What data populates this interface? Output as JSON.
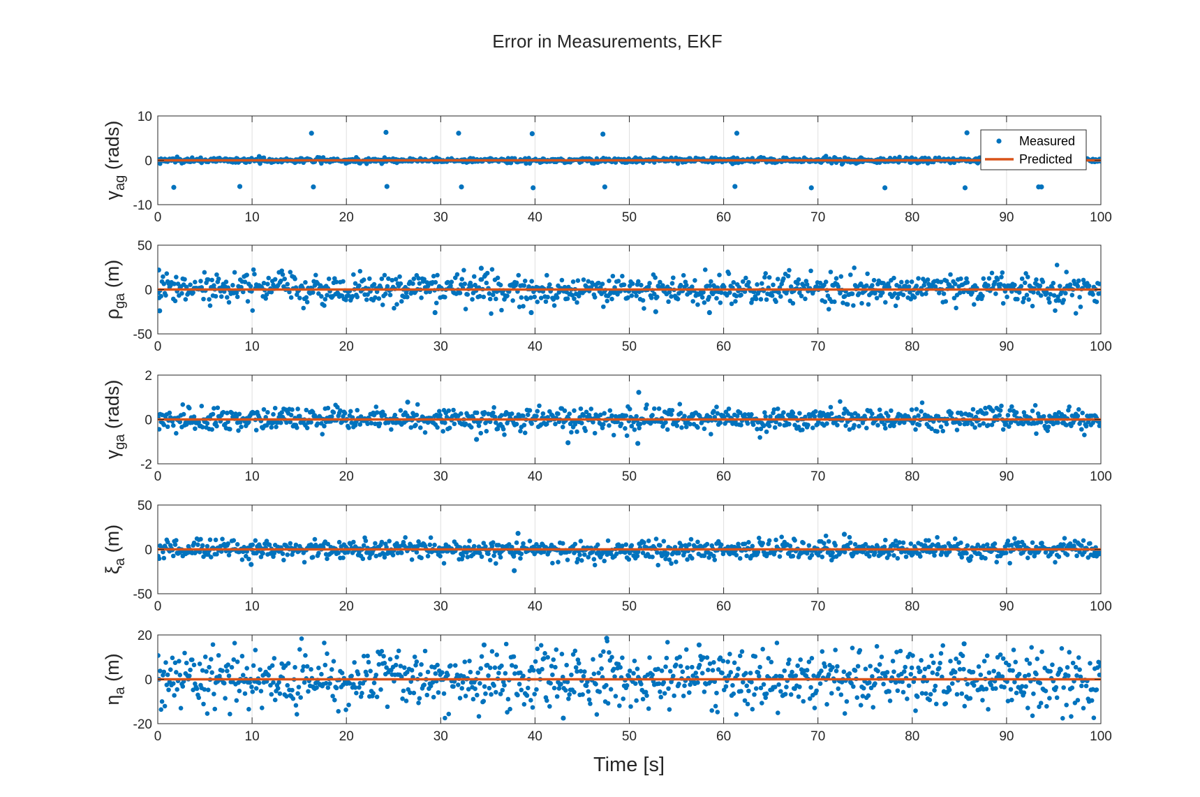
{
  "figure": {
    "title": "Error in Measurements, EKF",
    "xlabel": "Time [s]"
  },
  "legend": {
    "placement": "top-right",
    "items": [
      {
        "label": "Measured",
        "marker": "dot",
        "color": "#0072BD"
      },
      {
        "label": "Predicted",
        "marker": "line",
        "color": "#D95319"
      }
    ]
  },
  "colors": {
    "measured": "#0072BD",
    "predicted": "#D95319",
    "axis": "#262626",
    "grid": "#dfdfdf"
  },
  "chart_data": [
    {
      "type": "scatter",
      "ylabel_symbol": "γ",
      "ylabel_sub": "ag",
      "ylabel_unit": " (rads)",
      "xlim": [
        0,
        100
      ],
      "ylim": [
        -10,
        10
      ],
      "xticks": [
        0,
        10,
        20,
        30,
        40,
        50,
        60,
        70,
        80,
        90,
        100
      ],
      "yticks": [
        -10,
        0,
        10
      ],
      "noise_std": 0.3,
      "x": [
        1.7,
        8.7,
        16.3,
        16.5,
        24.2,
        24.3,
        31.9,
        32.2,
        39.7,
        39.8,
        47.2,
        47.4,
        61.2,
        61.4,
        69.3,
        77.1,
        85.6,
        85.8,
        93.4,
        93.7
      ],
      "y": [
        -6.1,
        -5.9,
        6.1,
        -6.0,
        6.3,
        -5.9,
        6.1,
        -6.0,
        6.0,
        -6.2,
        5.9,
        -6.0,
        -5.9,
        6.1,
        -6.2,
        -6.2,
        -6.2,
        6.2,
        -6.0,
        -6.0
      ],
      "series": [
        {
          "name": "Measured",
          "kind": "scatter"
        },
        {
          "name": "Predicted",
          "kind": "line",
          "x": [
            0,
            100
          ],
          "y": [
            0,
            0
          ]
        }
      ],
      "legend": true
    },
    {
      "type": "scatter",
      "ylabel_symbol": "ρ",
      "ylabel_sub": "ga",
      "ylabel_unit": " (m)",
      "xlim": [
        0,
        100
      ],
      "ylim": [
        -50,
        50
      ],
      "xticks": [
        0,
        10,
        20,
        30,
        40,
        50,
        60,
        70,
        80,
        90,
        100
      ],
      "yticks": [
        -50,
        0,
        50
      ],
      "noise_std": 8.5,
      "x": [
        0.1,
        0.2,
        29.4,
        34.3,
        39.6,
        52.8,
        58.5
      ],
      "y": [
        22,
        -24,
        -26,
        24,
        -26,
        -25,
        -26
      ],
      "series": [
        {
          "name": "Measured",
          "kind": "scatter"
        },
        {
          "name": "Predicted",
          "kind": "line",
          "x": [
            0,
            100
          ],
          "y": [
            0,
            0
          ]
        }
      ],
      "legend": false
    },
    {
      "type": "scatter",
      "ylabel_symbol": "γ",
      "ylabel_sub": "ga",
      "ylabel_unit": " (rads)",
      "xlim": [
        0,
        100
      ],
      "ylim": [
        -2,
        2
      ],
      "xticks": [
        0,
        10,
        20,
        30,
        40,
        50,
        60,
        70,
        80,
        90,
        100
      ],
      "yticks": [
        -2,
        0,
        2
      ],
      "noise_std": 0.27,
      "x": [
        51.0,
        50.9,
        43.5,
        26.5,
        33.8
      ],
      "y": [
        1.22,
        -1.08,
        -1.05,
        0.78,
        -0.9
      ],
      "series": [
        {
          "name": "Measured",
          "kind": "scatter"
        },
        {
          "name": "Predicted",
          "kind": "line",
          "x": [
            0,
            100
          ],
          "y": [
            0,
            0
          ]
        }
      ],
      "legend": false
    },
    {
      "type": "scatter",
      "ylabel_symbol": "ξ",
      "ylabel_sub": "a",
      "ylabel_unit": " (m)",
      "xlim": [
        0,
        100
      ],
      "ylim": [
        -50,
        50
      ],
      "xticks": [
        0,
        10,
        20,
        30,
        40,
        50,
        60,
        70,
        80,
        90,
        100
      ],
      "yticks": [
        -50,
        0,
        50
      ],
      "noise_std": 5.5,
      "x": [
        37.8,
        38.2,
        72.8,
        9.9
      ],
      "y": [
        -24,
        18,
        17,
        -17
      ],
      "series": [
        {
          "name": "Measured",
          "kind": "scatter"
        },
        {
          "name": "Predicted",
          "kind": "line",
          "x": [
            0,
            100
          ],
          "y": [
            0,
            0
          ]
        }
      ],
      "legend": false
    },
    {
      "type": "scatter",
      "ylabel_symbol": "η",
      "ylabel_sub": "a",
      "ylabel_unit": " (m)",
      "xlim": [
        0,
        100
      ],
      "ylim": [
        -20,
        20
      ],
      "xticks": [
        0,
        10,
        20,
        30,
        40,
        50,
        60,
        70,
        80,
        90,
        100
      ],
      "yticks": [
        -20,
        0,
        20
      ],
      "noise_std": 7.0,
      "x": [
        47.6,
        43.0,
        34.6,
        57.4,
        85.5
      ],
      "y": [
        18.5,
        -17.5,
        15.5,
        15.5,
        16
      ],
      "series": [
        {
          "name": "Measured",
          "kind": "scatter"
        },
        {
          "name": "Predicted",
          "kind": "line",
          "x": [
            0,
            100
          ],
          "y": [
            0,
            0
          ]
        }
      ],
      "legend": false
    }
  ]
}
